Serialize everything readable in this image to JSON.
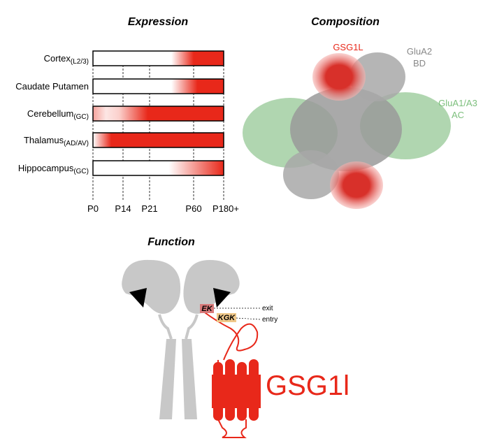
{
  "expression": {
    "title": "Expression",
    "rows": [
      {
        "label": "Cortex",
        "subscript": "(L2/3)"
      },
      {
        "label": "Caudate Putamen"
      },
      {
        "label": "Cerebellum",
        "subscript": "(GC)"
      },
      {
        "label": "Thalamus",
        "subscript": "(AD/AV)"
      },
      {
        "label": "Hippocampus",
        "subscript": "(GC)"
      }
    ],
    "timepoints": [
      "P0",
      "P14",
      "P21",
      "P60",
      "P180+"
    ]
  },
  "composition": {
    "title": "Composition",
    "labels": [
      {
        "lines": [
          "GSG1L"
        ]
      },
      {
        "lines": [
          "GluA2",
          "BD"
        ]
      },
      {
        "lines": [
          "GluA1/A3",
          "AC"
        ]
      }
    ]
  },
  "function": {
    "title": "Function",
    "motifs": [
      "EK",
      "KGK"
    ],
    "arrows": [
      "exit",
      "entry"
    ],
    "protein": "GSG1l"
  }
}
